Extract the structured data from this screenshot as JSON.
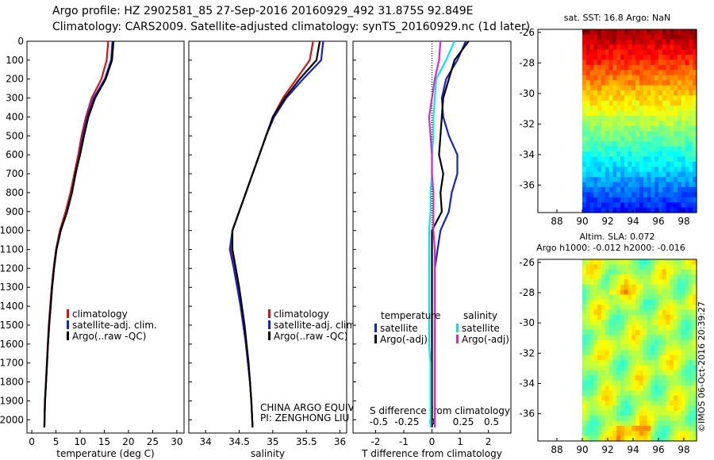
{
  "header": {
    "line1": "Argo profile: HZ 2902581_85 27-Sep-2016 20160929_492 31.875S 92.849E",
    "line2": "Climatology: CARS2009. Satellite-adjusted climatology: synTS_20160929.nc (1d later)"
  },
  "timestamp": "©IMOS 06-Oct-2016 20:39:27",
  "colors": {
    "climatology": "#e01010",
    "satellite": "#1020e0",
    "argo": "#000000",
    "sat_salinity": "#00e8e8",
    "argo_salinity": "#e020e0"
  },
  "depth_axis": {
    "ticks": [
      0,
      100,
      200,
      300,
      400,
      500,
      600,
      700,
      800,
      900,
      1000,
      1100,
      1200,
      1300,
      1400,
      1500,
      1600,
      1700,
      1800,
      1900,
      2000
    ]
  },
  "chart_data": [
    {
      "type": "line",
      "xlabel": "temperature (deg C)",
      "xticks": [
        0,
        5,
        10,
        15,
        20,
        25,
        30
      ],
      "xlim": [
        -1,
        31.5
      ],
      "ylim": [
        2070,
        0
      ],
      "legend": [
        "climatology",
        "satellite-adj. clim.",
        "Argo(..raw -QC)"
      ],
      "series": [
        {
          "name": "climatology",
          "color": "#e01010",
          "x": [
            15.8,
            15.5,
            14.4,
            12.4,
            11.2,
            10.3,
            9.6,
            8.8,
            8.0,
            7.0,
            5.8,
            5.0,
            4.5,
            4.1,
            3.8,
            3.5,
            3.3,
            3.1,
            2.9,
            2.7,
            2.6
          ],
          "y": [
            0,
            100,
            200,
            300,
            400,
            500,
            600,
            700,
            800,
            900,
            1000,
            1100,
            1200,
            1300,
            1400,
            1500,
            1600,
            1700,
            1800,
            1900,
            2040
          ]
        },
        {
          "name": "satellite-adj. clim.",
          "color": "#1020e0",
          "x": [
            16.7,
            16.4,
            15.1,
            12.8,
            11.5,
            10.6,
            9.9,
            9.1,
            8.3,
            7.3,
            6.0,
            5.1,
            4.6,
            4.2,
            3.9,
            3.6,
            3.35,
            3.15,
            2.95,
            2.75,
            2.6
          ],
          "y": [
            0,
            100,
            200,
            300,
            400,
            500,
            600,
            700,
            800,
            900,
            1000,
            1100,
            1200,
            1300,
            1400,
            1500,
            1600,
            1700,
            1800,
            1900,
            2040
          ]
        },
        {
          "name": "Argo(..raw -QC)",
          "color": "#000000",
          "x": [
            16.9,
            16.6,
            15.3,
            13.1,
            11.7,
            10.8,
            10.0,
            9.0,
            8.3,
            7.3,
            6.0,
            5.1,
            4.6,
            4.2,
            3.9,
            3.6,
            3.35,
            3.15,
            2.95,
            2.75,
            2.6
          ],
          "y": [
            0,
            100,
            200,
            300,
            400,
            500,
            600,
            700,
            800,
            900,
            1000,
            1100,
            1200,
            1300,
            1400,
            1500,
            1600,
            1700,
            1800,
            1900,
            2040
          ]
        }
      ]
    },
    {
      "type": "line",
      "xlabel": "salinity",
      "xticks": [
        34,
        34.5,
        35,
        35.5,
        36
      ],
      "xlim": [
        33.75,
        36.1
      ],
      "ylim": [
        2070,
        0
      ],
      "legend": [
        "climatology",
        "satellite-adj. clim.",
        "Argo(..raw -QC)"
      ],
      "annotation": [
        "CHINA ARGO EQUIVALENT",
        "PI: ZENGHONG LIU"
      ],
      "series": [
        {
          "name": "climatology",
          "color": "#e01010",
          "x": [
            35.6,
            35.55,
            35.35,
            35.15,
            35.0,
            34.9,
            34.8,
            34.7,
            34.6,
            34.5,
            34.4,
            34.38,
            34.43,
            34.48,
            34.53,
            34.57,
            34.6,
            34.63,
            34.66,
            34.68,
            34.7
          ],
          "y": [
            0,
            100,
            200,
            300,
            400,
            500,
            600,
            700,
            800,
            900,
            1000,
            1100,
            1200,
            1300,
            1400,
            1500,
            1600,
            1700,
            1800,
            1900,
            2040
          ]
        },
        {
          "name": "satellite-adj. clim.",
          "color": "#1020e0",
          "x": [
            35.75,
            35.72,
            35.45,
            35.2,
            35.02,
            34.9,
            34.8,
            34.7,
            34.6,
            34.5,
            34.4,
            34.36,
            34.42,
            34.47,
            34.52,
            34.56,
            34.6,
            34.63,
            34.66,
            34.68,
            34.7
          ],
          "y": [
            0,
            100,
            200,
            300,
            400,
            500,
            600,
            700,
            800,
            900,
            1000,
            1100,
            1200,
            1300,
            1400,
            1500,
            1600,
            1700,
            1800,
            1900,
            2040
          ]
        },
        {
          "name": "Argo(..raw -QC)",
          "color": "#000000",
          "x": [
            35.7,
            35.65,
            35.4,
            35.18,
            35.0,
            34.9,
            34.8,
            34.7,
            34.6,
            34.5,
            34.4,
            34.4,
            34.45,
            34.5,
            34.54,
            34.58,
            34.61,
            34.64,
            34.66,
            34.68,
            34.7
          ],
          "y": [
            0,
            100,
            200,
            300,
            400,
            500,
            600,
            700,
            800,
            900,
            1000,
            1100,
            1200,
            1300,
            1400,
            1500,
            1600,
            1700,
            1800,
            1900,
            2040
          ]
        }
      ]
    },
    {
      "type": "line",
      "xlabel": "T difference from climatology",
      "xlabel_top": "S difference from climatology",
      "xticks": [
        -2,
        -1,
        0,
        1,
        2
      ],
      "xticks_top": [
        "-0.5",
        "-0.25",
        "0",
        "0.25",
        "0.5"
      ],
      "xlim": [
        -2.8,
        2.8
      ],
      "ylim": [
        2070,
        0
      ],
      "legend_temperature_title": "temperature",
      "legend_salinity_title": "salinity",
      "legend": [
        "satellite",
        "Argo(-adj)",
        "satellite",
        "Argo(-adj)"
      ],
      "series": [
        {
          "name": "temperature satellite",
          "color": "#1020e0",
          "x": [
            1.2,
            0.9,
            0.5,
            0.35,
            0.4,
            0.6,
            0.9,
            0.9,
            0.7,
            0.6,
            0.3,
            0.2,
            0.1,
            0.1,
            0.1,
            0.1,
            0.1,
            0.1,
            0.1,
            0.1,
            0.1
          ],
          "y": [
            0,
            100,
            200,
            300,
            400,
            500,
            600,
            700,
            800,
            900,
            1000,
            1100,
            1200,
            1300,
            1400,
            1500,
            1600,
            1700,
            1800,
            1900,
            2040
          ]
        },
        {
          "name": "temperature Argo(-adj)",
          "color": "#000000",
          "x": [
            1.3,
            0.8,
            0.6,
            0.4,
            0.35,
            0.3,
            0.25,
            0.4,
            0.3,
            0.35,
            0.0,
            0.0,
            0.0,
            0.0,
            0.0,
            0.0,
            0.0,
            0.0,
            0.0,
            0.0,
            0.0
          ],
          "y": [
            0,
            100,
            200,
            300,
            400,
            500,
            600,
            700,
            800,
            900,
            1000,
            1100,
            1200,
            1300,
            1400,
            1500,
            1600,
            1700,
            1800,
            1900,
            2040
          ]
        },
        {
          "name": "salinity satellite",
          "color": "#00e8e8",
          "x": [
            0.8,
            0.5,
            0.15,
            0.1,
            0.05,
            0.05,
            0.0,
            0.0,
            -0.05,
            -0.05,
            -0.1,
            -0.1,
            -0.1,
            -0.1,
            -0.1,
            -0.1,
            -0.1,
            -0.05,
            -0.05,
            -0.05,
            -0.05
          ],
          "y": [
            0,
            100,
            200,
            300,
            400,
            500,
            600,
            700,
            800,
            900,
            1000,
            1100,
            1200,
            1300,
            1400,
            1500,
            1600,
            1700,
            1800,
            1900,
            2040
          ]
        },
        {
          "name": "salinity Argo(-adj)",
          "color": "#e020e0",
          "x": [
            0.3,
            0.25,
            0.1,
            0.0,
            -0.1,
            -0.05,
            0.0,
            0.0,
            0.05,
            0.05,
            0.05,
            0.1,
            0.1,
            0.1,
            0.1,
            0.1,
            0.1,
            0.1,
            0.1,
            0.1,
            0.1
          ],
          "y": [
            0,
            100,
            200,
            300,
            400,
            500,
            600,
            700,
            800,
            900,
            1000,
            1100,
            1200,
            1300,
            1400,
            1500,
            1600,
            1700,
            1800,
            1900,
            2040
          ]
        }
      ]
    },
    {
      "type": "heatmap",
      "title": "sat. SST: 16.8  Argo: NaN",
      "xticks": [
        88,
        90,
        92,
        94,
        96,
        98
      ],
      "yticks": [
        -26,
        -28,
        -30,
        -32,
        -34,
        -36
      ],
      "xlim": [
        86.5,
        99
      ],
      "ylim": [
        -37.8,
        -25.8
      ],
      "data_xlim": [
        90,
        99
      ],
      "colormap": "jet",
      "gradient": "warm (red) in north to cool (blue) in south"
    },
    {
      "type": "heatmap",
      "title_line1": "Altim. SLA: 0.072",
      "title_line2": "Argo h1000: -0.012  h2000: -0.016",
      "xticks": [
        88,
        90,
        92,
        94,
        96,
        98
      ],
      "yticks": [
        -26,
        -28,
        -30,
        -32,
        -34,
        -36
      ],
      "xlim": [
        86.5,
        99
      ],
      "ylim": [
        -37.8,
        -25.8
      ],
      "data_xlim": [
        90,
        99
      ],
      "colormap": "jet",
      "gradient": "mostly green with yellow and light-blue patches"
    }
  ]
}
